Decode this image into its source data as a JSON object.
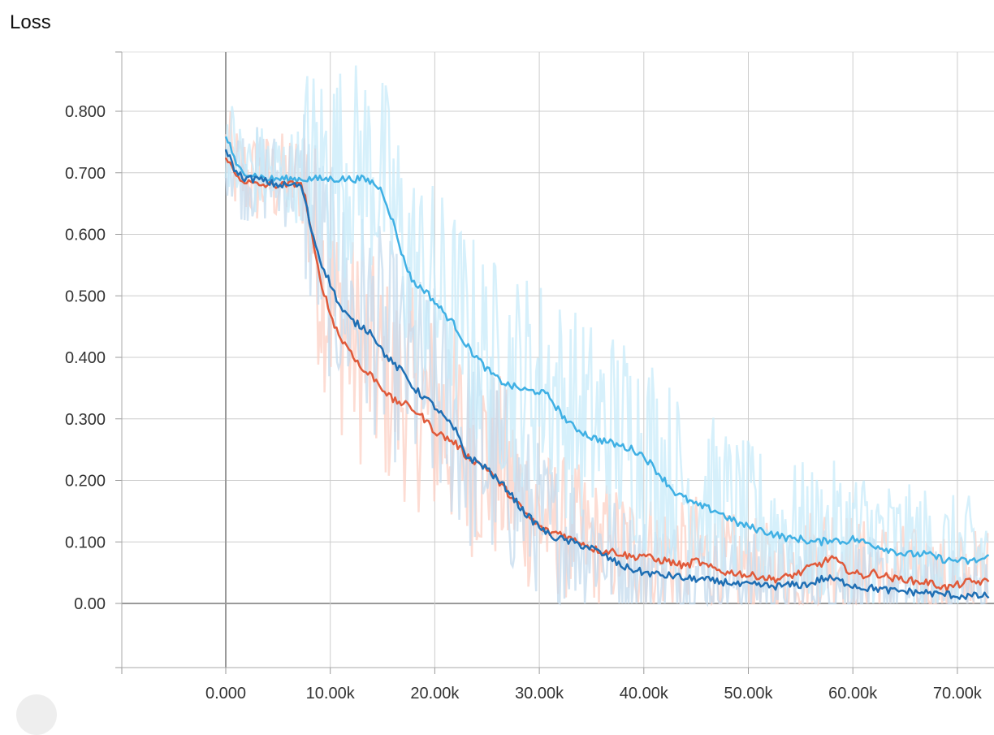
{
  "chart_data": {
    "type": "line",
    "title": "Loss",
    "xlabel": "",
    "ylabel": "",
    "x_ticks": [
      "0.000",
      "10.00k",
      "20.00k",
      "30.00k",
      "40.00k",
      "50.00k",
      "60.00k",
      "70.00k"
    ],
    "y_ticks": [
      "0.00",
      "0.100",
      "0.200",
      "0.300",
      "0.400",
      "0.500",
      "0.600",
      "0.700",
      "0.800"
    ],
    "xlim": [
      -10000,
      73000
    ],
    "ylim": [
      -0.1,
      0.9
    ],
    "grid": true,
    "legend": "none",
    "series": [
      {
        "color": "#e05a3a",
        "raw_color": "#fcd0c4",
        "points": [
          [
            0,
            0.73
          ],
          [
            500,
            0.71
          ],
          [
            1000,
            0.695
          ],
          [
            2000,
            0.685
          ],
          [
            3000,
            0.68
          ],
          [
            4000,
            0.68
          ],
          [
            5000,
            0.68
          ],
          [
            6000,
            0.68
          ],
          [
            7000,
            0.685
          ],
          [
            7500,
            0.67
          ],
          [
            8000,
            0.62
          ],
          [
            8500,
            0.57
          ],
          [
            9000,
            0.53
          ],
          [
            9500,
            0.5
          ],
          [
            10000,
            0.47
          ],
          [
            11000,
            0.43
          ],
          [
            12000,
            0.41
          ],
          [
            13000,
            0.38
          ],
          [
            14000,
            0.37
          ],
          [
            15000,
            0.35
          ],
          [
            16000,
            0.33
          ],
          [
            17000,
            0.325
          ],
          [
            18000,
            0.315
          ],
          [
            19000,
            0.3
          ],
          [
            20000,
            0.28
          ],
          [
            21000,
            0.27
          ],
          [
            22000,
            0.26
          ],
          [
            23000,
            0.24
          ],
          [
            24000,
            0.23
          ],
          [
            25000,
            0.22
          ],
          [
            26000,
            0.2
          ],
          [
            27000,
            0.18
          ],
          [
            28000,
            0.16
          ],
          [
            29000,
            0.14
          ],
          [
            30000,
            0.125
          ],
          [
            31000,
            0.115
          ],
          [
            32000,
            0.115
          ],
          [
            33000,
            0.105
          ],
          [
            34000,
            0.1
          ],
          [
            35000,
            0.09
          ],
          [
            36000,
            0.085
          ],
          [
            37000,
            0.085
          ],
          [
            38000,
            0.08
          ],
          [
            39000,
            0.075
          ],
          [
            40000,
            0.08
          ],
          [
            41000,
            0.07
          ],
          [
            42000,
            0.07
          ],
          [
            43000,
            0.065
          ],
          [
            44000,
            0.06
          ],
          [
            45000,
            0.07
          ],
          [
            46000,
            0.06
          ],
          [
            47000,
            0.055
          ],
          [
            48000,
            0.05
          ],
          [
            49000,
            0.05
          ],
          [
            50000,
            0.045
          ],
          [
            51000,
            0.045
          ],
          [
            52000,
            0.04
          ],
          [
            53000,
            0.04
          ],
          [
            54000,
            0.045
          ],
          [
            55000,
            0.05
          ],
          [
            56000,
            0.06
          ],
          [
            57000,
            0.065
          ],
          [
            58000,
            0.075
          ],
          [
            59000,
            0.06
          ],
          [
            60000,
            0.05
          ],
          [
            61000,
            0.045
          ],
          [
            62000,
            0.05
          ],
          [
            63000,
            0.045
          ],
          [
            64000,
            0.04
          ],
          [
            65000,
            0.04
          ],
          [
            66000,
            0.035
          ],
          [
            67000,
            0.035
          ],
          [
            68000,
            0.03
          ],
          [
            69000,
            0.025
          ],
          [
            70000,
            0.03
          ],
          [
            71000,
            0.035
          ],
          [
            72000,
            0.035
          ],
          [
            73000,
            0.035
          ]
        ]
      },
      {
        "color": "#1f6fb4",
        "raw_color": "#c4dbee",
        "points": [
          [
            0,
            0.74
          ],
          [
            500,
            0.72
          ],
          [
            1000,
            0.7
          ],
          [
            2000,
            0.69
          ],
          [
            3000,
            0.69
          ],
          [
            4000,
            0.685
          ],
          [
            5000,
            0.68
          ],
          [
            6000,
            0.68
          ],
          [
            7000,
            0.68
          ],
          [
            7500,
            0.665
          ],
          [
            8000,
            0.62
          ],
          [
            8500,
            0.59
          ],
          [
            9000,
            0.56
          ],
          [
            9500,
            0.54
          ],
          [
            10000,
            0.52
          ],
          [
            11000,
            0.48
          ],
          [
            12000,
            0.46
          ],
          [
            13000,
            0.45
          ],
          [
            14000,
            0.44
          ],
          [
            15000,
            0.41
          ],
          [
            16000,
            0.39
          ],
          [
            17000,
            0.375
          ],
          [
            18000,
            0.35
          ],
          [
            19000,
            0.335
          ],
          [
            20000,
            0.32
          ],
          [
            21000,
            0.3
          ],
          [
            22000,
            0.28
          ],
          [
            23000,
            0.24
          ],
          [
            24000,
            0.23
          ],
          [
            25000,
            0.22
          ],
          [
            26000,
            0.2
          ],
          [
            27000,
            0.185
          ],
          [
            28000,
            0.16
          ],
          [
            29000,
            0.14
          ],
          [
            30000,
            0.125
          ],
          [
            31000,
            0.11
          ],
          [
            32000,
            0.105
          ],
          [
            33000,
            0.1
          ],
          [
            34000,
            0.095
          ],
          [
            35000,
            0.09
          ],
          [
            36000,
            0.08
          ],
          [
            37000,
            0.07
          ],
          [
            38000,
            0.06
          ],
          [
            39000,
            0.055
          ],
          [
            40000,
            0.05
          ],
          [
            41000,
            0.048
          ],
          [
            42000,
            0.045
          ],
          [
            43000,
            0.045
          ],
          [
            44000,
            0.04
          ],
          [
            45000,
            0.04
          ],
          [
            46000,
            0.038
          ],
          [
            47000,
            0.035
          ],
          [
            48000,
            0.035
          ],
          [
            49000,
            0.03
          ],
          [
            50000,
            0.03
          ],
          [
            51000,
            0.03
          ],
          [
            52000,
            0.028
          ],
          [
            53000,
            0.028
          ],
          [
            54000,
            0.03
          ],
          [
            55000,
            0.03
          ],
          [
            56000,
            0.032
          ],
          [
            57000,
            0.04
          ],
          [
            58000,
            0.04
          ],
          [
            59000,
            0.035
          ],
          [
            60000,
            0.03
          ],
          [
            61000,
            0.025
          ],
          [
            62000,
            0.025
          ],
          [
            63000,
            0.022
          ],
          [
            64000,
            0.02
          ],
          [
            65000,
            0.02
          ],
          [
            66000,
            0.018
          ],
          [
            67000,
            0.018
          ],
          [
            68000,
            0.015
          ],
          [
            69000,
            0.015
          ],
          [
            70000,
            0.012
          ],
          [
            71000,
            0.012
          ],
          [
            72000,
            0.012
          ],
          [
            73000,
            0.012
          ]
        ]
      },
      {
        "color": "#3fb0e4",
        "raw_color": "#c8ebf9",
        "points": [
          [
            0,
            0.76
          ],
          [
            500,
            0.74
          ],
          [
            1000,
            0.71
          ],
          [
            2000,
            0.7
          ],
          [
            3000,
            0.695
          ],
          [
            4000,
            0.69
          ],
          [
            5000,
            0.69
          ],
          [
            6000,
            0.69
          ],
          [
            7000,
            0.69
          ],
          [
            8000,
            0.69
          ],
          [
            9000,
            0.69
          ],
          [
            10000,
            0.69
          ],
          [
            11000,
            0.69
          ],
          [
            12000,
            0.69
          ],
          [
            13000,
            0.69
          ],
          [
            14000,
            0.685
          ],
          [
            15000,
            0.67
          ],
          [
            16000,
            0.62
          ],
          [
            17000,
            0.56
          ],
          [
            18000,
            0.52
          ],
          [
            19000,
            0.51
          ],
          [
            20000,
            0.49
          ],
          [
            21000,
            0.47
          ],
          [
            22000,
            0.45
          ],
          [
            23000,
            0.42
          ],
          [
            24000,
            0.4
          ],
          [
            25000,
            0.38
          ],
          [
            26000,
            0.365
          ],
          [
            27000,
            0.355
          ],
          [
            28000,
            0.35
          ],
          [
            29000,
            0.345
          ],
          [
            30000,
            0.345
          ],
          [
            31000,
            0.335
          ],
          [
            32000,
            0.31
          ],
          [
            33000,
            0.29
          ],
          [
            34000,
            0.28
          ],
          [
            35000,
            0.27
          ],
          [
            36000,
            0.265
          ],
          [
            37000,
            0.26
          ],
          [
            38000,
            0.255
          ],
          [
            39000,
            0.25
          ],
          [
            40000,
            0.24
          ],
          [
            41000,
            0.22
          ],
          [
            42000,
            0.2
          ],
          [
            43000,
            0.18
          ],
          [
            44000,
            0.17
          ],
          [
            45000,
            0.16
          ],
          [
            46000,
            0.155
          ],
          [
            47000,
            0.15
          ],
          [
            48000,
            0.14
          ],
          [
            49000,
            0.13
          ],
          [
            50000,
            0.125
          ],
          [
            51000,
            0.12
          ],
          [
            52000,
            0.115
          ],
          [
            53000,
            0.11
          ],
          [
            54000,
            0.105
          ],
          [
            55000,
            0.105
          ],
          [
            56000,
            0.1
          ],
          [
            57000,
            0.1
          ],
          [
            58000,
            0.105
          ],
          [
            59000,
            0.1
          ],
          [
            60000,
            0.105
          ],
          [
            61000,
            0.1
          ],
          [
            62000,
            0.095
          ],
          [
            63000,
            0.09
          ],
          [
            64000,
            0.085
          ],
          [
            65000,
            0.08
          ],
          [
            66000,
            0.08
          ],
          [
            67000,
            0.08
          ],
          [
            68000,
            0.075
          ],
          [
            69000,
            0.07
          ],
          [
            70000,
            0.07
          ],
          [
            71000,
            0.068
          ],
          [
            72000,
            0.07
          ],
          [
            73000,
            0.075
          ]
        ]
      }
    ]
  }
}
